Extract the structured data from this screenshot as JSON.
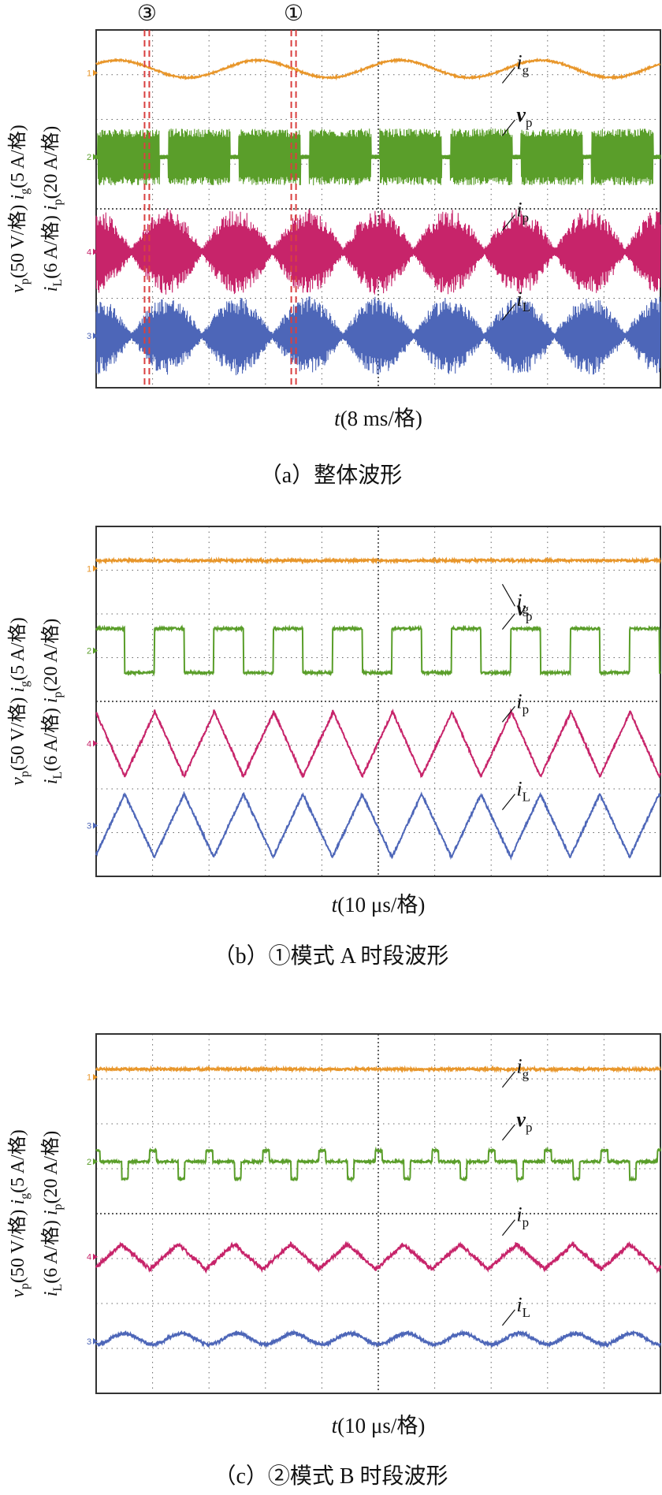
{
  "colors": {
    "ig": "#e8962a",
    "vp": "#5a9e2a",
    "ip": "#c7246a",
    "iL": "#4d66b8",
    "marker": "#d94040",
    "axis": "#333333",
    "grid": "#666666"
  },
  "chart_data": [
    {
      "id": "a",
      "type": "line",
      "caption": "（a）整体波形",
      "xlabel_var": "t",
      "xlabel_scale": "(8 ms/格)",
      "y_left_outer": "v_p(50 V/格)  i_g(5 A/格)",
      "y_left_inner": "i_L(6 A/格)  i_p(20 A/格)",
      "markers": [
        "③",
        "①"
      ],
      "divisions": {
        "x": 10,
        "y": 8
      },
      "series": [
        {
          "name": "i_g",
          "channel": "1",
          "shape": "sine",
          "waveform": "grid current (sinusoidal, low amplitude)"
        },
        {
          "name": "v_p",
          "channel": "2",
          "shape": "square-burst",
          "waveform": "high-frequency square bursts"
        },
        {
          "name": "i_p",
          "channel": "4",
          "shape": "envelope",
          "waveform": "sinusoidally modulated HF envelope"
        },
        {
          "name": "i_L",
          "channel": "3",
          "shape": "envelope",
          "waveform": "sinusoidally modulated HF envelope"
        }
      ]
    },
    {
      "id": "b",
      "type": "line",
      "caption": "（b）①模式 A 时段波形",
      "xlabel_var": "t",
      "xlabel_scale": "(10 μs/格)",
      "y_left_outer": "v_p(50 V/格)  i_g(5 A/格)",
      "y_left_inner": "i_L(6 A/格)  i_p(20 A/格)",
      "divisions": {
        "x": 10,
        "y": 8
      },
      "series": [
        {
          "name": "i_g",
          "channel": "1",
          "shape": "flat"
        },
        {
          "name": "v_p",
          "channel": "2",
          "shape": "square"
        },
        {
          "name": "i_p",
          "channel": "4",
          "shape": "sawtooth"
        },
        {
          "name": "i_L",
          "channel": "3",
          "shape": "triangle"
        }
      ]
    },
    {
      "id": "c",
      "type": "line",
      "caption": "（c）②模式 B 时段波形",
      "xlabel_var": "t",
      "xlabel_scale": "(10 μs/格)",
      "y_left_outer": "v_p(50 V/格)  i_g(5 A/格)",
      "y_left_inner": "i_L(6 A/格)  i_p(20 A/格)",
      "divisions": {
        "x": 10,
        "y": 8
      },
      "series": [
        {
          "name": "i_g",
          "channel": "1",
          "shape": "flat"
        },
        {
          "name": "v_p",
          "channel": "2",
          "shape": "three-level"
        },
        {
          "name": "i_p",
          "channel": "4",
          "shape": "small-triangle"
        },
        {
          "name": "i_L",
          "channel": "3",
          "shape": "small-ripple"
        }
      ]
    }
  ]
}
